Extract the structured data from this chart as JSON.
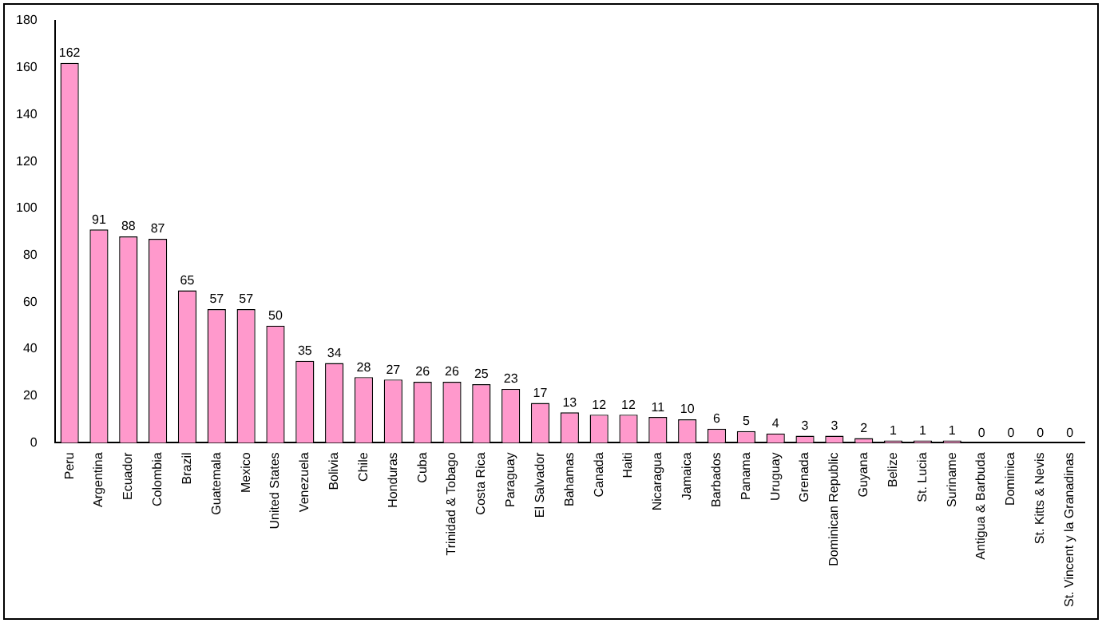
{
  "chart_data": {
    "type": "bar",
    "categories": [
      "Peru",
      "Argentina",
      "Ecuador",
      "Colombia",
      "Brazil",
      "Guatemala",
      "Mexico",
      "United States",
      "Venezuela",
      "Bolivia",
      "Chile",
      "Honduras",
      "Cuba",
      "Trinidad & Tobago",
      "Costa Rica",
      "Paraguay",
      "El Salvador",
      "Bahamas",
      "Canada",
      "Haiti",
      "Nicaragua",
      "Jamaica",
      "Barbados",
      "Panama",
      "Uruguay",
      "Grenada",
      "Dominican Republic",
      "Guyana",
      "Belize",
      "St. Lucia",
      "Suriname",
      "Antigua & Barbuda",
      "Dominica",
      "St. Kitts & Nevis",
      "St. Vincent y la Granadinas"
    ],
    "values": [
      162,
      91,
      88,
      87,
      65,
      57,
      57,
      50,
      35,
      34,
      28,
      27,
      26,
      26,
      25,
      23,
      17,
      13,
      12,
      12,
      11,
      10,
      6,
      5,
      4,
      3,
      3,
      2,
      1,
      1,
      1,
      0,
      0,
      0,
      0
    ],
    "color": "#ff99cc",
    "ylim": [
      0,
      180
    ],
    "yticks": [
      0,
      20,
      40,
      60,
      80,
      100,
      120,
      140,
      160,
      180
    ],
    "grid": false,
    "legend": false,
    "data_labels": true
  }
}
